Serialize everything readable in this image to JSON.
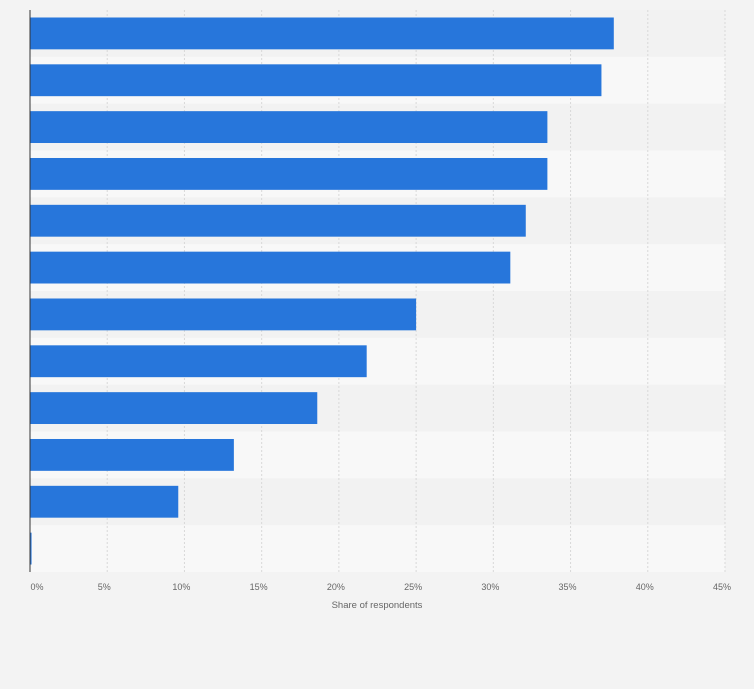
{
  "chart_data": {
    "type": "bar",
    "orientation": "horizontal",
    "title": "",
    "xlabel": "Share of respondents",
    "ylabel": "",
    "xlim": [
      0,
      45
    ],
    "ticks": [
      0,
      5,
      10,
      15,
      20,
      25,
      30,
      35,
      40,
      45
    ],
    "tick_labels": [
      "0%",
      "5%",
      "10%",
      "15%",
      "20%",
      "25%",
      "30%",
      "35%",
      "40%",
      "45%"
    ],
    "values": [
      37.8,
      37.0,
      33.5,
      33.5,
      32.1,
      31.1,
      25.0,
      21.8,
      18.6,
      13.2,
      9.6,
      0.1
    ],
    "grid": true,
    "colors": {
      "bar": "#2776db",
      "row_a": "#f2f2f2",
      "row_b": "#f8f8f8",
      "grid": "#d8d8d8",
      "axis": "#333333"
    }
  }
}
